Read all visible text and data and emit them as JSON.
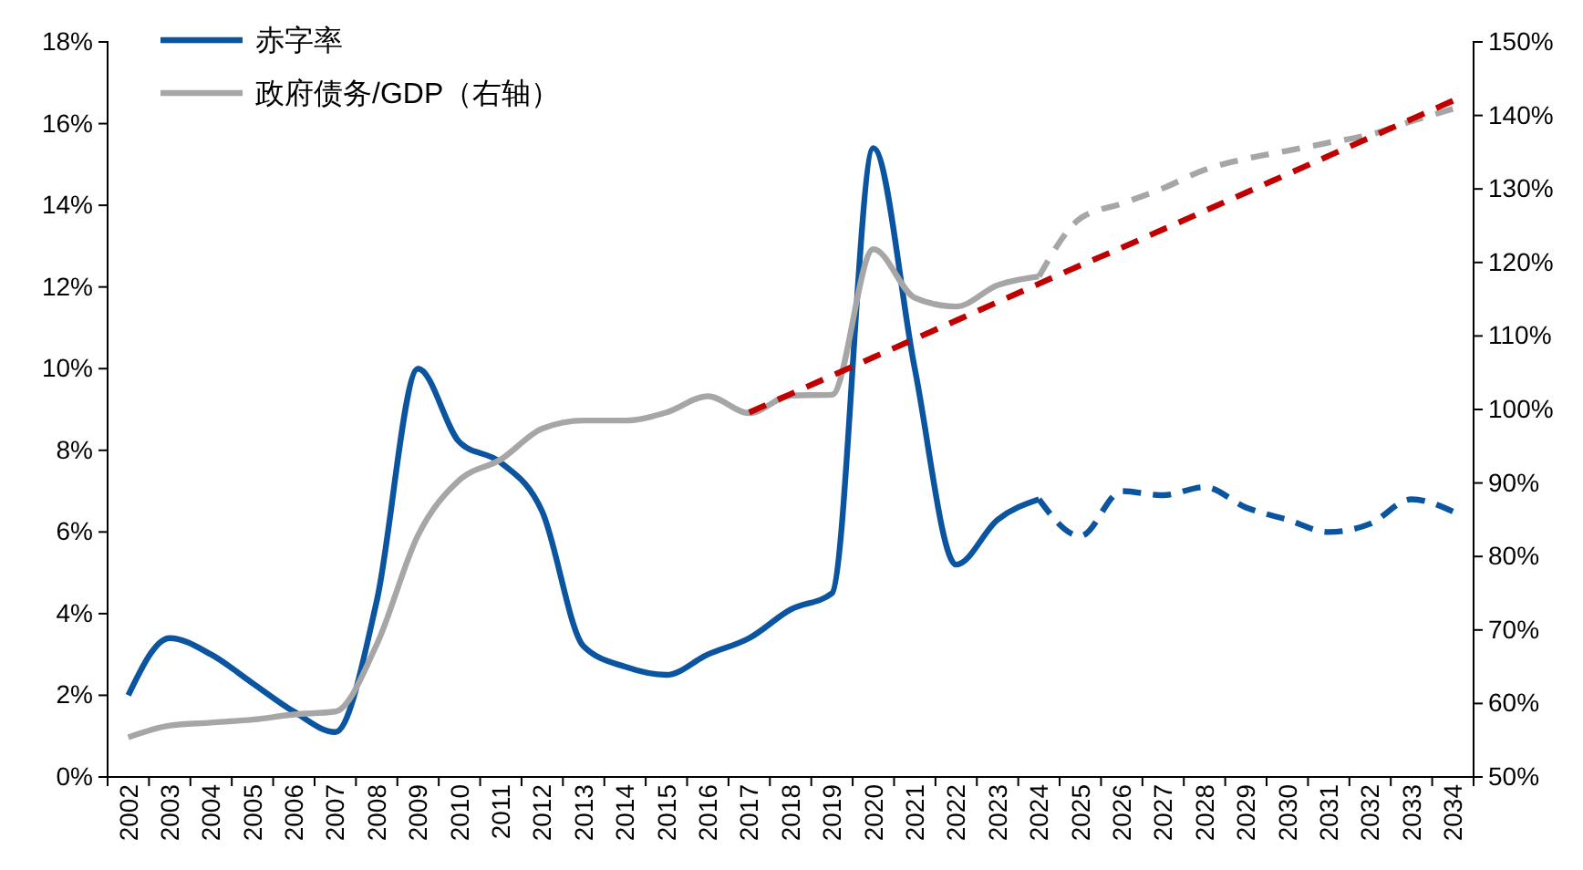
{
  "chart_data": {
    "type": "line",
    "categories": [
      "2002",
      "2003",
      "2004",
      "2005",
      "2006",
      "2007",
      "2008",
      "2009",
      "2010",
      "2011",
      "2012",
      "2013",
      "2014",
      "2015",
      "2016",
      "2017",
      "2018",
      "2019",
      "2020",
      "2021",
      "2022",
      "2023",
      "2024",
      "2025",
      "2026",
      "2027",
      "2028",
      "2029",
      "2030",
      "2031",
      "2032",
      "2033",
      "2034"
    ],
    "series": [
      {
        "name": "赤字率",
        "color": "#0a54a0",
        "line_style": "solid",
        "values": [
          2.0,
          3.4,
          3.0,
          2.3,
          1.6,
          1.1,
          4.3,
          10.0,
          8.2,
          7.7,
          6.5,
          3.2,
          2.7,
          2.5,
          3.0,
          3.4,
          4.1,
          4.5,
          15.4,
          10.0,
          5.2,
          6.3,
          6.8,
          null,
          null,
          null,
          null,
          null,
          null,
          null,
          null,
          null,
          null
        ]
      },
      {
        "name": "政府债务/GDP（右轴）",
        "color": "#a6a6a6",
        "axis": "y2",
        "line_style": "solid",
        "values": [
          55.4,
          57.0,
          57.4,
          57.8,
          58.5,
          58.9,
          68.0,
          82.9,
          90.4,
          93.2,
          97.4,
          98.5,
          98.5,
          99.6,
          101.8,
          99.5,
          101.9,
          102.0,
          121.8,
          115.2,
          114.0,
          116.9,
          118.1,
          null,
          null,
          null,
          null,
          null,
          null,
          null,
          null,
          null,
          null
        ]
      },
      {
        "color": "#0a54a0",
        "line_style": "dashed",
        "values": [
          null,
          null,
          null,
          null,
          null,
          null,
          null,
          null,
          null,
          null,
          null,
          null,
          null,
          null,
          null,
          null,
          null,
          null,
          null,
          null,
          null,
          null,
          6.8,
          5.9,
          7.0,
          6.9,
          7.1,
          6.6,
          6.3,
          6.0,
          6.2,
          6.8,
          6.5
        ]
      },
      {
        "color": "#a6a6a6",
        "axis": "y2",
        "line_style": "dashed",
        "values": [
          null,
          null,
          null,
          null,
          null,
          null,
          null,
          null,
          null,
          null,
          null,
          null,
          null,
          null,
          null,
          null,
          null,
          null,
          null,
          null,
          null,
          null,
          118.1,
          126.0,
          128.0,
          130.1,
          132.6,
          134.1,
          135.2,
          136.3,
          137.4,
          139.2,
          140.9
        ]
      },
      {
        "color": "#c00000",
        "axis": "y2",
        "line_style": "dashed",
        "values": [
          null,
          null,
          null,
          null,
          null,
          null,
          null,
          null,
          null,
          null,
          null,
          null,
          null,
          null,
          null,
          99.6,
          102.1,
          104.6,
          107.1,
          109.6,
          112.1,
          114.6,
          117.1,
          119.6,
          122.0,
          124.5,
          127.0,
          129.5,
          132.0,
          134.5,
          137.0,
          139.5,
          142.0
        ]
      }
    ],
    "ylim": [
      0,
      18
    ],
    "yticks": [
      {
        "value": 0,
        "label": "0%"
      },
      {
        "value": 2,
        "label": "2%"
      },
      {
        "value": 4,
        "label": "4%"
      },
      {
        "value": 6,
        "label": "6%"
      },
      {
        "value": 8,
        "label": "8%"
      },
      {
        "value": 10,
        "label": "10%"
      },
      {
        "value": 12,
        "label": "12%"
      },
      {
        "value": 14,
        "label": "14%"
      },
      {
        "value": 16,
        "label": "16%"
      },
      {
        "value": 18,
        "label": "18%"
      }
    ],
    "y2lim": [
      50,
      150
    ],
    "y2ticks": [
      {
        "value": 50,
        "label": "50%"
      },
      {
        "value": 60,
        "label": "60%"
      },
      {
        "value": 70,
        "label": "70%"
      },
      {
        "value": 80,
        "label": "80%"
      },
      {
        "value": 90,
        "label": "90%"
      },
      {
        "value": 100,
        "label": "100%"
      },
      {
        "value": 110,
        "label": "110%"
      },
      {
        "value": 120,
        "label": "120%"
      },
      {
        "value": 130,
        "label": "130%"
      },
      {
        "value": 140,
        "label": "140%"
      },
      {
        "value": 150,
        "label": "150%"
      }
    ],
    "grid": false,
    "legend": "top left"
  }
}
